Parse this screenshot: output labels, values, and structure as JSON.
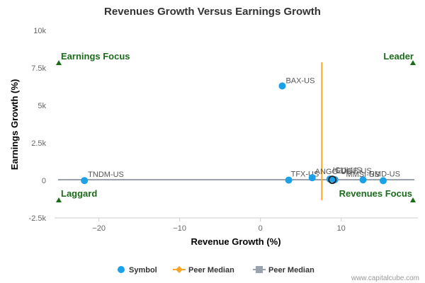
{
  "chart_data": {
    "type": "scatter",
    "title": "Revenues Growth Versus Earnings Growth",
    "xlabel": "Revenue Growth (%)",
    "ylabel": "Earnings Growth (%)",
    "xlim": [
      -25.5,
      19.5
    ],
    "ylim": [
      -2500,
      10000
    ],
    "x_ticks": [
      -20,
      -10,
      0,
      10
    ],
    "y_ticks": [
      {
        "value": 10000,
        "label": "10k"
      },
      {
        "value": 7500,
        "label": "7.5k"
      },
      {
        "value": 5000,
        "label": "5k"
      },
      {
        "value": 2500,
        "label": "2.5k"
      },
      {
        "value": 0,
        "label": "0"
      },
      {
        "value": -2500,
        "label": "-2.5k"
      }
    ],
    "points": [
      {
        "label": "BAX-US",
        "x": 2.7,
        "y": 6300
      },
      {
        "label": "TNDM-US",
        "x": -21.8,
        "y": -10
      },
      {
        "label": "TFX-US",
        "x": 3.5,
        "y": 20
      },
      {
        "label": "ANGO-US",
        "x": 6.4,
        "y": 180
      },
      {
        "label": "ICUI-US",
        "x": 8.6,
        "y": 90
      },
      {
        "label": "EDGE-US",
        "x": 9.2,
        "y": 50
      },
      {
        "label": "MMSI-US",
        "x": 12.7,
        "y": 40
      },
      {
        "label": "RMD-US",
        "x": 15.2,
        "y": -20
      }
    ],
    "highlighted_point": {
      "x": 8.9,
      "y": 40
    },
    "peer_median_x": 7.6,
    "peer_median_y": 50,
    "quadrants": {
      "top_left": "Earnings Focus",
      "top_right": "Leader",
      "bottom_left": "Laggard",
      "bottom_right": "Revenues Focus"
    },
    "legend": [
      {
        "name": "Symbol",
        "color": "#1aa1e8",
        "marker": "circle"
      },
      {
        "name": "Peer Median",
        "color": "#f7a52b",
        "marker": "diamond-line"
      },
      {
        "name": "Peer Median",
        "color": "#9aa3ad",
        "marker": "square-line"
      }
    ],
    "colors": {
      "points": "#1aa1e8",
      "x_median_line": "#f7a52b",
      "y_median_line": "#9aa3ad",
      "quadrant_text": "#1a6b1a",
      "triangles": "#1a6b1a"
    },
    "grid": false,
    "legend_position": "bottom"
  },
  "credit": "www.capitalcube.com"
}
